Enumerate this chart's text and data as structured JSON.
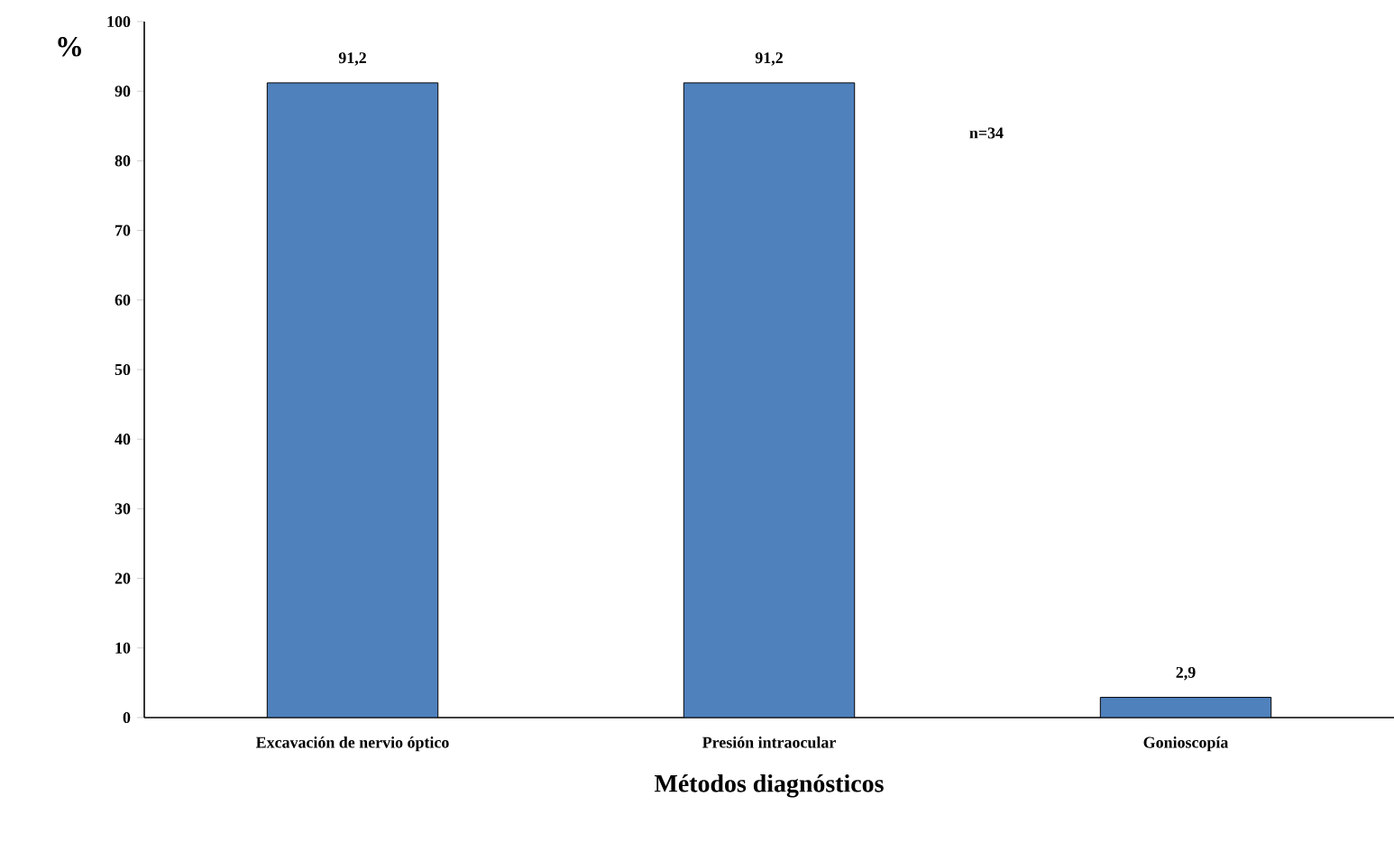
{
  "chart_data": {
    "type": "bar",
    "xlabel": "Métodos diagnósticos",
    "ylabel": "%",
    "categories": [
      "Excavación de nervio óptico",
      "Presión intraocular",
      "Gonioscopía"
    ],
    "values": [
      91.2,
      91.2,
      2.9
    ],
    "value_labels": [
      "91,2",
      "91,2",
      "2,9"
    ],
    "color": "#4f81bd",
    "ylim": [
      0,
      100
    ],
    "yticks": [
      0,
      10,
      20,
      30,
      40,
      50,
      60,
      70,
      80,
      90,
      100
    ],
    "annotations": [
      "n=34"
    ]
  }
}
